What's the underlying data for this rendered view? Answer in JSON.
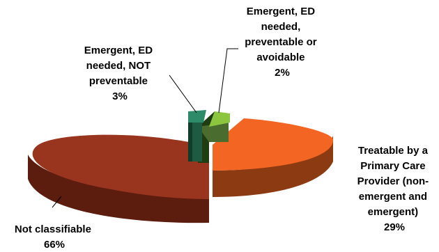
{
  "chart_data": {
    "type": "pie",
    "title": "",
    "slices": [
      {
        "name": "Emergent, ED needed, NOT preventable",
        "value": 3,
        "label_lines": [
          "Emergent, ED",
          "needed, NOT",
          "preventable",
          "3%"
        ],
        "color": "#2e8b6a"
      },
      {
        "name": "Emergent, ED needed, preventable or avoidable",
        "value": 2,
        "label_lines": [
          "Emergent, ED",
          "needed,",
          "preventable or",
          "avoidable",
          "2%"
        ],
        "color": "#8bc34a"
      },
      {
        "name": "Treatable by a Primary Care Provider (non-emergent and emergent)",
        "value": 29,
        "label_lines": [
          "Treatable by a",
          "Primary Care",
          "Provider (non-",
          "emergent and",
          "emergent)",
          "29%"
        ],
        "color": "#f26522"
      },
      {
        "name": "Not classifiable",
        "value": 66,
        "label_lines": [
          "Not classifiable",
          "66%"
        ],
        "color": "#9b3420"
      }
    ]
  }
}
